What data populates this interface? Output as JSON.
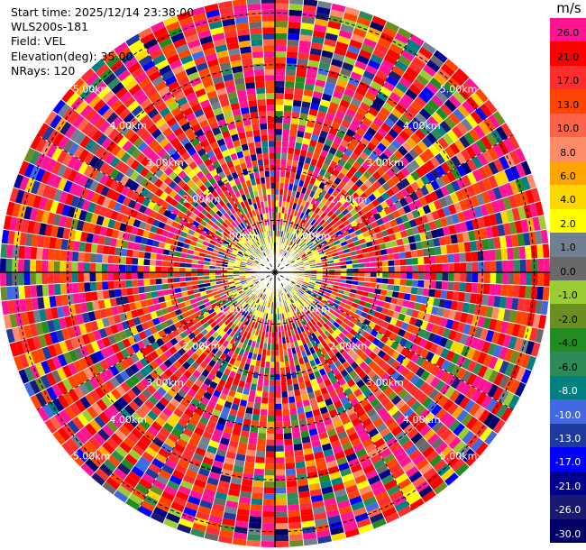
{
  "info": {
    "start_time": "Start time: 2025/12/14 23:38:00",
    "instrument": "WLS200s-181",
    "field": "Field: VEL",
    "elevation": "Elevation(deg): 35.00",
    "nrays": "NRays: 120"
  },
  "colorbar": {
    "unit": "m/s",
    "labels": [
      "26.0",
      "21.0",
      "17.0",
      "13.0",
      "10.0",
      "8.0",
      "6.0",
      "4.0",
      "2.0",
      "1.0",
      "0.0",
      "-1.0",
      "-2.0",
      "-4.0",
      "-6.0",
      "-8.0",
      "-10.0",
      "-13.0",
      "-17.0",
      "-21.0",
      "-26.0",
      "-30.0"
    ],
    "colors": [
      "#ff1493",
      "#ff0000",
      "#ff2e2e",
      "#ff4500",
      "#ff6347",
      "#ff8c69",
      "#ffa500",
      "#ffd700",
      "#ffff00",
      "#708090",
      "#696969",
      "#9acd32",
      "#6b8e23",
      "#228b22",
      "#2e8b57",
      "#008080",
      "#4169e1",
      "#1e3a9f",
      "#0000ff",
      "#00008b",
      "#191970",
      "#000066"
    ]
  },
  "chart_data": {
    "type": "heatmap",
    "projection": "polar PPI",
    "field": "VEL",
    "n_rays": 120,
    "elevation_deg": 35.0,
    "range_ring_labels": [
      "1.00km",
      "2.00km",
      "3.00km",
      "4.00km",
      "5.00km"
    ],
    "range_rings_km": [
      1,
      2,
      3,
      4,
      5
    ],
    "max_range_km": 5.3,
    "spoke_angles_deg": [
      0,
      30,
      60,
      90,
      120,
      150,
      180,
      210,
      240,
      270,
      300,
      330
    ],
    "label_angles_deg": [
      45,
      135,
      225,
      315
    ],
    "value_range": [
      -30,
      26
    ],
    "grid": true
  }
}
